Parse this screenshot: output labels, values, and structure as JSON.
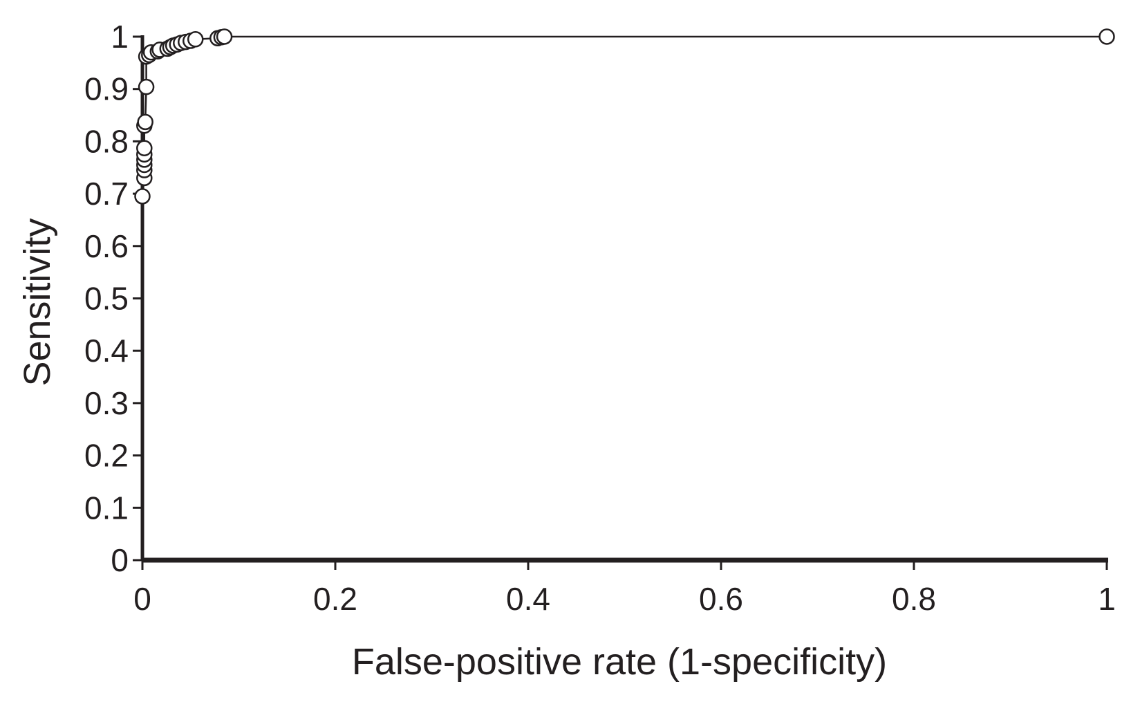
{
  "chart_data": {
    "type": "line",
    "title": "",
    "xlabel": "False-positive rate (1-specificity)",
    "ylabel": "Sensitivity",
    "xlim": [
      0,
      1
    ],
    "ylim": [
      0,
      1
    ],
    "x_ticks": [
      0,
      0.2,
      0.4,
      0.6,
      0.8,
      1
    ],
    "y_ticks": [
      0,
      0.1,
      0.2,
      0.3,
      0.4,
      0.5,
      0.6,
      0.7,
      0.8,
      0.9,
      1
    ],
    "x_tick_labels": [
      "0",
      "0.2",
      "0.4",
      "0.6",
      "0.8",
      "1"
    ],
    "y_tick_labels": [
      "0",
      "0.1",
      "0.2",
      "0.3",
      "0.4",
      "0.5",
      "0.6",
      "0.7",
      "0.8",
      "0.9",
      "1"
    ],
    "grid": false,
    "legend": "none",
    "marker": "open-circle",
    "line_color": "#231f20",
    "marker_fill": "#ffffff",
    "series": [
      {
        "points": [
          {
            "x": 0,
            "y": 0
          },
          {
            "x": 0,
            "y": 0.695
          },
          {
            "x": 0.002,
            "y": 0.73
          },
          {
            "x": 0.002,
            "y": 0.745
          },
          {
            "x": 0.002,
            "y": 0.755
          },
          {
            "x": 0.002,
            "y": 0.765
          },
          {
            "x": 0.002,
            "y": 0.775
          },
          {
            "x": 0.002,
            "y": 0.787
          },
          {
            "x": 0.002,
            "y": 0.83
          },
          {
            "x": 0.003,
            "y": 0.837
          },
          {
            "x": 0.004,
            "y": 0.904
          },
          {
            "x": 0.004,
            "y": 0.962
          },
          {
            "x": 0.007,
            "y": 0.965
          },
          {
            "x": 0.009,
            "y": 0.97
          },
          {
            "x": 0.016,
            "y": 0.972
          },
          {
            "x": 0.018,
            "y": 0.975
          },
          {
            "x": 0.026,
            "y": 0.977
          },
          {
            "x": 0.029,
            "y": 0.98
          },
          {
            "x": 0.032,
            "y": 0.983
          },
          {
            "x": 0.036,
            "y": 0.985
          },
          {
            "x": 0.04,
            "y": 0.988
          },
          {
            "x": 0.045,
            "y": 0.99
          },
          {
            "x": 0.05,
            "y": 0.992
          },
          {
            "x": 0.055,
            "y": 0.995
          },
          {
            "x": 0.078,
            "y": 0.997
          },
          {
            "x": 0.082,
            "y": 0.999
          },
          {
            "x": 0.085,
            "y": 1.0
          },
          {
            "x": 1.0,
            "y": 1.0
          }
        ]
      }
    ]
  }
}
